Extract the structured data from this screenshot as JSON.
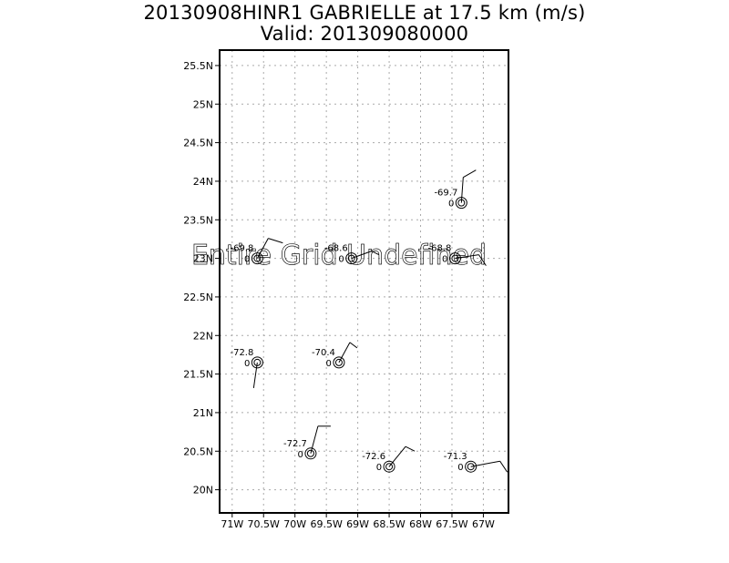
{
  "title": {
    "line1": "20130908HINR1 GABRIELLE at 17.5 km (m/s)",
    "line2": "Valid: 201309080000"
  },
  "watermark": "Entire Grid Undefined",
  "axes": {
    "x_ticks": [
      "71W",
      "70.5W",
      "70W",
      "69.5W",
      "69W",
      "68.5W",
      "68W",
      "67.5W",
      "67W"
    ],
    "y_ticks": [
      "20N",
      "20.5N",
      "21N",
      "21.5N",
      "22N",
      "22.5N",
      "23N",
      "23.5N",
      "24N",
      "24.5N",
      "25N",
      "25.5N"
    ],
    "lon_range": [
      -71.2,
      -66.6
    ],
    "lat_range": [
      19.7,
      25.7
    ],
    "grid": true
  },
  "observations": [
    {
      "lon": -67.35,
      "lat": 23.72,
      "value": "-69.7",
      "count": "0"
    },
    {
      "lon": -70.6,
      "lat": 23.0,
      "value": "-69.8",
      "count": "0"
    },
    {
      "lon": -69.1,
      "lat": 23.0,
      "value": "-68.6",
      "count": "0"
    },
    {
      "lon": -67.45,
      "lat": 23.0,
      "value": "-68.8",
      "count": "0"
    },
    {
      "lon": -70.6,
      "lat": 21.65,
      "value": "-72.8",
      "count": "0"
    },
    {
      "lon": -69.3,
      "lat": 21.65,
      "value": "-70.4",
      "count": "0"
    },
    {
      "lon": -69.75,
      "lat": 20.47,
      "value": "-72.7",
      "count": "0"
    },
    {
      "lon": -68.5,
      "lat": 20.3,
      "value": "-72.6",
      "count": "0"
    },
    {
      "lon": -67.2,
      "lat": 20.3,
      "value": "-71.3",
      "count": "0"
    }
  ],
  "wind_barbs": [
    {
      "lon": -67.35,
      "lat": 23.72,
      "segments": [
        [
          0,
          0,
          2,
          -28
        ],
        [
          2,
          -28,
          16,
          -36
        ]
      ]
    },
    {
      "lon": -70.6,
      "lat": 23.0,
      "segments": [
        [
          0,
          0,
          12,
          -22
        ],
        [
          12,
          -22,
          28,
          -17
        ]
      ]
    },
    {
      "lon": -69.1,
      "lat": 23.0,
      "segments": [
        [
          0,
          0,
          22,
          -8
        ],
        [
          22,
          -8,
          30,
          -4
        ]
      ]
    },
    {
      "lon": -67.45,
      "lat": 23.0,
      "segments": [
        [
          0,
          0,
          26,
          -4
        ],
        [
          26,
          -4,
          34,
          8
        ]
      ]
    },
    {
      "lon": -70.6,
      "lat": 21.65,
      "segments": [
        [
          0,
          0,
          -4,
          28
        ]
      ]
    },
    {
      "lon": -69.3,
      "lat": 21.65,
      "segments": [
        [
          0,
          0,
          12,
          -22
        ],
        [
          12,
          -22,
          20,
          -16
        ]
      ]
    },
    {
      "lon": -69.75,
      "lat": 20.47,
      "segments": [
        [
          0,
          0,
          8,
          -30
        ],
        [
          8,
          -30,
          22,
          -30
        ]
      ]
    },
    {
      "lon": -68.5,
      "lat": 20.3,
      "segments": [
        [
          0,
          0,
          18,
          -22
        ],
        [
          18,
          -22,
          28,
          -17
        ]
      ]
    },
    {
      "lon": -67.2,
      "lat": 20.3,
      "segments": [
        [
          0,
          0,
          32,
          -6
        ],
        [
          32,
          -6,
          40,
          6
        ]
      ]
    }
  ]
}
